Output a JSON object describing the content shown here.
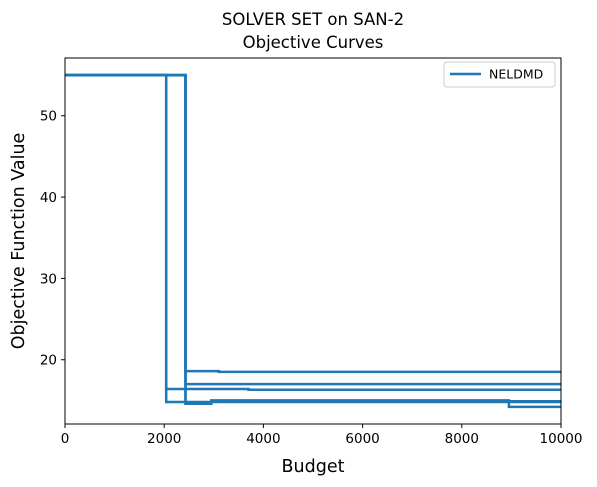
{
  "chart_data": {
    "type": "line",
    "title": "SOLVER SET on SAN-2",
    "subtitle": "Objective Curves",
    "xlabel": "Budget",
    "ylabel": "Objective Function Value",
    "xlim": [
      0,
      10000
    ],
    "ylim": [
      12.1,
      57.1
    ],
    "xticks": [
      0,
      2000,
      4000,
      6000,
      8000,
      10000
    ],
    "xtick_labels": [
      "0",
      "2000",
      "4000",
      "6000",
      "8000",
      "10000"
    ],
    "yticks": [
      20,
      30,
      40,
      50
    ],
    "ytick_labels": [
      "20",
      "30",
      "40",
      "50"
    ],
    "grid": false,
    "legend_position": "top-right",
    "legend": [
      {
        "label": "NELDMD",
        "color": "#1f77b4"
      }
    ],
    "series_color": "#1f77b4",
    "series": [
      {
        "x": [
          0,
          2040,
          2040,
          10000
        ],
        "y": [
          55.0,
          55.0,
          14.8,
          14.8
        ]
      },
      {
        "x": [
          0,
          2040,
          2040,
          3700,
          3700,
          10000
        ],
        "y": [
          55.0,
          55.0,
          16.4,
          16.4,
          16.3,
          16.3
        ]
      },
      {
        "x": [
          0,
          2430,
          2430,
          3100,
          3100,
          10000
        ],
        "y": [
          55.0,
          55.0,
          18.6,
          18.6,
          18.5,
          18.5
        ]
      },
      {
        "x": [
          0,
          2430,
          2430,
          10000
        ],
        "y": [
          55.0,
          55.0,
          17.0,
          17.0
        ]
      },
      {
        "x": [
          0,
          2430,
          2430,
          2950,
          2950,
          8950,
          8950,
          10000
        ],
        "y": [
          55.0,
          55.0,
          14.6,
          14.6,
          15.0,
          15.0,
          14.2,
          14.2
        ]
      },
      {
        "x": [
          0,
          2430,
          2430,
          2950,
          2950,
          10000
        ],
        "y": [
          55.0,
          55.0,
          14.6,
          14.6,
          14.9,
          14.9
        ]
      }
    ]
  }
}
